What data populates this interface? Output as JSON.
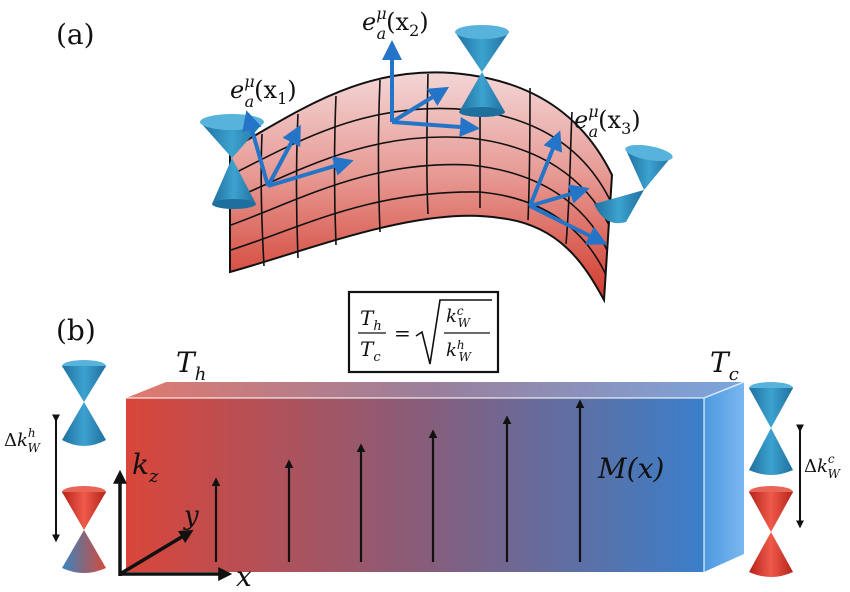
{
  "panel_a": {
    "label": "(a)",
    "vielbein_label_main": "e",
    "vielbein_sup": "μ",
    "vielbein_sub": "a",
    "points": [
      "(x1)",
      "(x2)",
      "(x3)"
    ],
    "point_display": [
      {
        "arg": "(x",
        "idx": "1",
        "close": ")"
      },
      {
        "arg": "(x",
        "idx": "2",
        "close": ")"
      },
      {
        "arg": "(x",
        "idx": "3",
        "close": ")"
      }
    ]
  },
  "panel_b": {
    "label": "(b)",
    "hot_temp": {
      "main": "T",
      "sub": "h"
    },
    "cold_temp": {
      "main": "T",
      "sub": "c"
    },
    "formula": {
      "lhs_num": {
        "main": "T",
        "sub": "h"
      },
      "lhs_den": {
        "main": "T",
        "sub": "c"
      },
      "equals": "=",
      "rhs_num": {
        "main": "k",
        "sup": "c",
        "sub": "W"
      },
      "rhs_den": {
        "main": "k",
        "sup": "h",
        "sub": "W"
      }
    },
    "gap_hot": {
      "delta": "Δ",
      "main": "k",
      "sup": "h",
      "sub": "W"
    },
    "gap_cold": {
      "delta": "Δ",
      "main": "k",
      "sup": "c",
      "sub": "W"
    },
    "magnetization": "M(x)",
    "axes": {
      "x": "x",
      "y": "y",
      "kz": {
        "main": "k",
        "sub": "z"
      }
    }
  },
  "colors": {
    "hot": "#d9463a",
    "cold": "#3a7fc9",
    "cone_blue": "#2a86b8",
    "cone_red": "#d8352a",
    "arrow_blue": "#2475c8"
  }
}
